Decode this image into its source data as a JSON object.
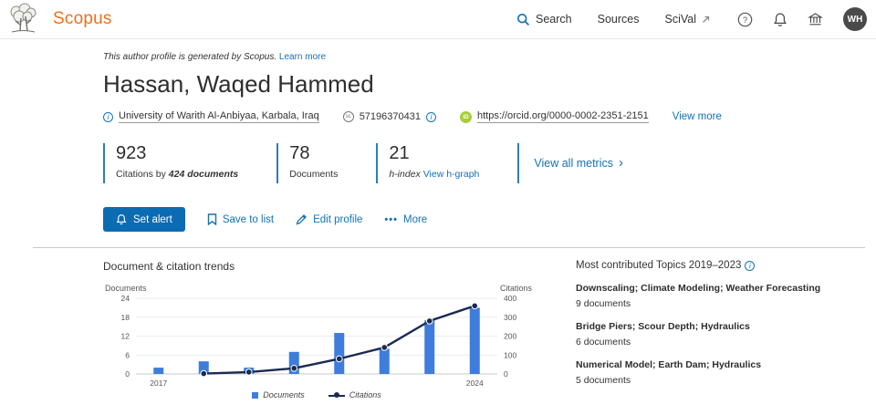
{
  "header": {
    "brand": "Scopus",
    "nav": {
      "search": "Search",
      "sources": "Sources",
      "scival": "SciVal"
    },
    "avatar_initials": "WH"
  },
  "banner": {
    "text": "This author profile is generated by Scopus.",
    "link": "Learn more"
  },
  "profile": {
    "name": "Hassan, Waqed Hammed",
    "affiliation": "University of Warith Al-Anbiyaa, Karbala, Iraq",
    "scopus_id": "57196370431",
    "orcid_url": "https://orcid.org/0000-0002-2351-2151",
    "view_more": "View more"
  },
  "metrics": {
    "citations_value": "923",
    "citations_label_prefix": "Citations by ",
    "citations_label_bold": "424 documents",
    "documents_value": "78",
    "documents_label": "Documents",
    "hindex_value": "21",
    "hindex_label": "h-index ",
    "hindex_link": "View h-graph",
    "view_all_label": "View all metrics"
  },
  "actions": {
    "set_alert": "Set alert",
    "save_to_list": "Save to list",
    "edit_profile": "Edit profile",
    "more": "More"
  },
  "trends_section": {
    "title": "Document & citation trends"
  },
  "chart_data": {
    "type": "bar+line",
    "title": "Document & citation trends",
    "categories": [
      2017,
      2018,
      2019,
      2020,
      2021,
      2022,
      2023,
      2024
    ],
    "series": [
      {
        "name": "Documents",
        "type": "bar",
        "axis": "left",
        "values": [
          2,
          4,
          2,
          7,
          13,
          8,
          17,
          21
        ]
      },
      {
        "name": "Citations",
        "type": "line",
        "axis": "right",
        "values": [
          null,
          2,
          10,
          30,
          80,
          140,
          280,
          360
        ]
      }
    ],
    "left_axis": {
      "label": "Documents",
      "ticks": [
        0,
        6,
        12,
        18,
        24
      ],
      "max": 24
    },
    "right_axis": {
      "label": "Citations",
      "ticks": [
        0,
        100,
        200,
        300,
        400
      ],
      "max": 400
    },
    "x_tick_labels": [
      "2017",
      "2024"
    ],
    "legend": [
      "Documents",
      "Citations"
    ],
    "legend_position": "bottom",
    "grid": true,
    "colors": {
      "bar": "#3e7ddb",
      "line": "#1b2a52"
    }
  },
  "topics": {
    "title": "Most contributed Topics 2019–2023",
    "items": [
      {
        "name": "Downscaling; Climate Modeling; Weather Forecasting",
        "count": "9 documents"
      },
      {
        "name": "Bridge Piers; Scour Depth; Hydraulics",
        "count": "6 documents"
      },
      {
        "name": "Numerical Model; Earth Dam; Hydraulics",
        "count": "5 documents"
      }
    ]
  },
  "icons": {
    "info_glyph": "i",
    "help_glyph": "?",
    "scopus_id_glyph": "sc",
    "orcid_glyph": "iD",
    "more_glyph": "•••",
    "chevron_glyph": "›"
  }
}
